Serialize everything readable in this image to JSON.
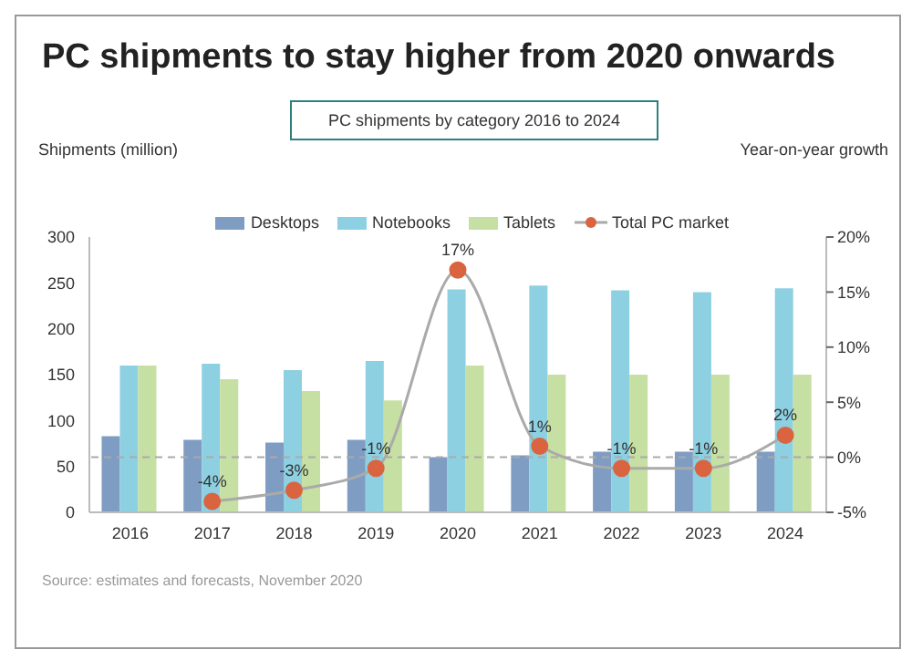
{
  "chart_data": {
    "type": "bar",
    "title": "PC shipments to stay higher from 2020 onwards",
    "subtitle": "PC shipments by category 2016 to 2024",
    "ylabel": "Shipments (million)",
    "y2label": "Year-on-year growth",
    "categories": [
      "2016",
      "2017",
      "2018",
      "2019",
      "2020",
      "2021",
      "2022",
      "2023",
      "2024"
    ],
    "series": [
      {
        "name": "Desktops",
        "color": "#7f9cc2",
        "values": [
          83,
          79,
          76,
          79,
          60,
          62,
          66,
          66,
          66
        ]
      },
      {
        "name": "Notebooks",
        "color": "#8dd0e2",
        "values": [
          160,
          162,
          155,
          165,
          243,
          247,
          242,
          240,
          244
        ]
      },
      {
        "name": "Tablets",
        "color": "#c6dfa2",
        "values": [
          160,
          145,
          132,
          122,
          160,
          150,
          150,
          150,
          150
        ]
      },
      {
        "name": "Total PC market",
        "type": "line",
        "axis": "y2",
        "color": "#d9643f",
        "marker": "circle",
        "values": [
          null,
          -4,
          -3,
          -1,
          17,
          1,
          -1,
          -1,
          2
        ],
        "value_labels": [
          null,
          "-4%",
          "-3%",
          "-1%",
          "17%",
          "1%",
          "-1%",
          "-1%",
          "2%"
        ]
      }
    ],
    "ylim": [
      0,
      300
    ],
    "yticks": [
      0,
      50,
      100,
      150,
      200,
      250,
      300
    ],
    "y2lim": [
      -5,
      20
    ],
    "y2ticks": [
      {
        "value": -5,
        "label": "-5%"
      },
      {
        "value": 0,
        "label": "0%"
      },
      {
        "value": 5,
        "label": "5%"
      },
      {
        "value": 10,
        "label": "10%"
      },
      {
        "value": 15,
        "label": "15%"
      },
      {
        "value": 20,
        "label": "20%"
      }
    ],
    "ref_lines": [
      {
        "axis": "y2",
        "value": 0,
        "color": "#aaaaaa",
        "line_style": "dashed"
      }
    ],
    "grid": false,
    "legend": "top",
    "annotations": [
      "Source: estimates and forecasts, November 2020"
    ]
  }
}
